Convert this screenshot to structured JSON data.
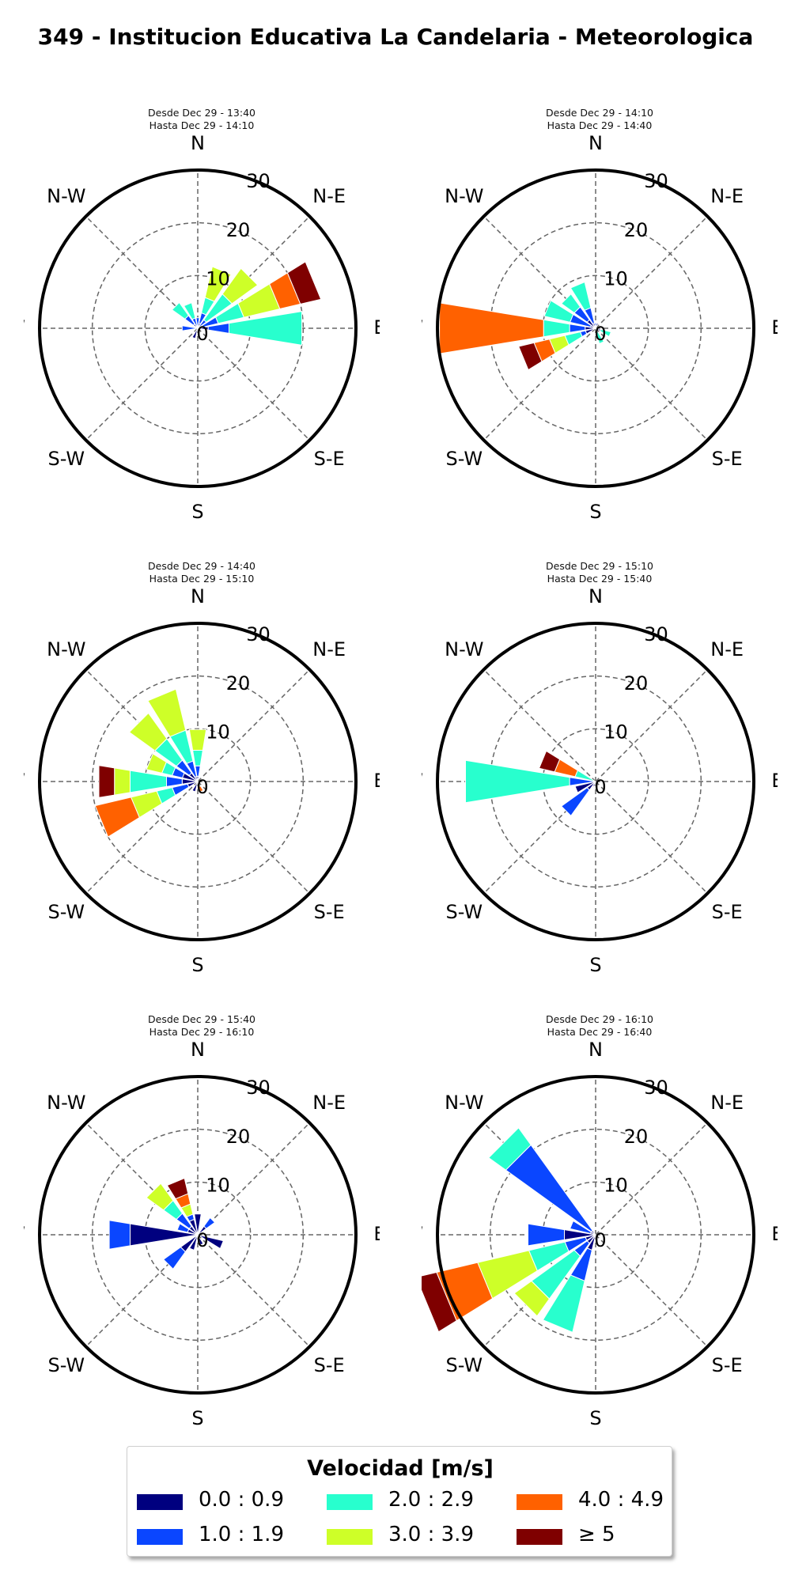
{
  "chart_data": {
    "type": "windrose",
    "title": "349 - Institucion Educativa La Candelaria - Meteorologica",
    "direction_labels": [
      "N",
      "N-E",
      "E",
      "S-E",
      "S",
      "S-W",
      "W",
      "N-W"
    ],
    "radial_ticks": [
      "0",
      "10",
      "20",
      "30"
    ],
    "rlim": [
      0,
      30
    ],
    "units": "percent frequency",
    "legend": {
      "title": "Velocidad [m/s]",
      "bins": [
        {
          "label": "0.0 : 0.9",
          "color": "#00007f"
        },
        {
          "label": "1.0 : 1.9",
          "color": "#0a46ff"
        },
        {
          "label": "2.0 : 2.9",
          "color": "#28ffce"
        },
        {
          "label": "3.0 : 3.9",
          "color": "#ceff28"
        },
        {
          "label": "4.0 : 4.9",
          "color": "#ff6100"
        },
        {
          "label": "≥  5",
          "color": "#7f0000"
        }
      ]
    },
    "panels": [
      {
        "desde": "Desde Dec 29 - 13:40",
        "hasta": "Hasta Dec 29 - 14:10",
        "sectors": [
          {
            "dir": 0,
            "segments": [
              0,
              2,
              0,
              0,
              0,
              0
            ]
          },
          {
            "dir": 22.5,
            "segments": [
              1,
              2,
              3,
              6,
              0,
              0
            ]
          },
          {
            "dir": 45,
            "segments": [
              0,
              2,
              6,
              6,
              0,
              0
            ]
          },
          {
            "dir": 67.5,
            "segments": [
              1,
              3,
              5,
              7,
              4,
              4
            ]
          },
          {
            "dir": 90,
            "segments": [
              2,
              4,
              14,
              0,
              0,
              0
            ]
          },
          {
            "dir": 180,
            "segments": [
              0,
              0,
              0,
              0,
              0,
              0
            ]
          },
          {
            "dir": 202.5,
            "segments": [
              2,
              0,
              0,
              0,
              0,
              0
            ]
          },
          {
            "dir": 270,
            "segments": [
              0,
              3,
              0,
              0,
              0,
              0
            ]
          },
          {
            "dir": 315,
            "segments": [
              1,
              2,
              3,
              0,
              0,
              0
            ]
          },
          {
            "dir": 337.5,
            "segments": [
              0,
              2,
              3,
              0,
              0,
              0
            ]
          }
        ]
      },
      {
        "desde": "Desde Dec 29 - 14:10",
        "hasta": "Hasta Dec 29 - 14:40",
        "sectors": [
          {
            "dir": 0,
            "segments": [
              0,
              1,
              0,
              0,
              0,
              0
            ]
          },
          {
            "dir": 22.5,
            "segments": [
              1,
              0,
              0,
              0,
              0,
              0
            ]
          },
          {
            "dir": 112.5,
            "segments": [
              1,
              0,
              2,
              0,
              0,
              0
            ]
          },
          {
            "dir": 157.5,
            "segments": [
              0,
              0,
              3,
              0,
              0,
              0
            ]
          },
          {
            "dir": 247.5,
            "segments": [
              2,
              1,
              3,
              3,
              3,
              3
            ]
          },
          {
            "dir": 270,
            "segments": [
              2,
              3,
              5,
              0,
              20,
              0
            ]
          },
          {
            "dir": 292.5,
            "segments": [
              1,
              4,
              5,
              0,
              0,
              0
            ]
          },
          {
            "dir": 315,
            "segments": [
              2,
              3,
              3,
              0,
              0,
              0
            ]
          },
          {
            "dir": 337.5,
            "segments": [
              1,
              3,
              5,
              0,
              0,
              0
            ]
          }
        ]
      },
      {
        "desde": "Desde Dec 29 - 14:40",
        "hasta": "Hasta Dec 29 - 15:10",
        "sectors": [
          {
            "dir": 0,
            "segments": [
              1,
              2,
              3,
              4,
              0,
              0
            ]
          },
          {
            "dir": 157.5,
            "segments": [
              0,
              0,
              0,
              1,
              1,
              0
            ]
          },
          {
            "dir": 202.5,
            "segments": [
              2,
              0,
              0,
              0,
              0,
              0
            ]
          },
          {
            "dir": 247.5,
            "segments": [
              2,
              3,
              3,
              5,
              7,
              0
            ]
          },
          {
            "dir": 270,
            "segments": [
              3,
              3,
              7,
              3,
              0,
              3
            ]
          },
          {
            "dir": 292.5,
            "segments": [
              3,
              2,
              2,
              3,
              0,
              0
            ]
          },
          {
            "dir": 315,
            "segments": [
              2,
              3,
              5,
              6,
              0,
              0
            ]
          },
          {
            "dir": 337.5,
            "segments": [
              1,
              3,
              6,
              8,
              0,
              0
            ]
          }
        ]
      },
      {
        "desde": "Desde Dec 29 - 15:10",
        "hasta": "Hasta Dec 29 - 15:40",
        "sectors": [
          {
            "dir": 202.5,
            "segments": [
              1,
              0,
              0,
              0,
              0,
              0
            ]
          },
          {
            "dir": 225,
            "segments": [
              2,
              6,
              0,
              0,
              0,
              0
            ]
          },
          {
            "dir": 210,
            "segments": [
              0,
              0,
              0,
              0,
              0,
              0
            ]
          },
          {
            "dir": 247.5,
            "segments": [
              4,
              0,
              0,
              0,
              0,
              0
            ]
          },
          {
            "dir": 270,
            "segments": [
              0,
              5,
              20,
              0,
              0,
              0
            ]
          },
          {
            "dir": 292.5,
            "segments": [
              0,
              0,
              4,
              0,
              4,
              3
            ]
          }
        ]
      },
      {
        "desde": "Desde Dec 29 - 15:40",
        "hasta": "Hasta Dec 29 - 16:10",
        "sectors": [
          {
            "dir": 0,
            "segments": [
              4,
              0,
              0,
              0,
              0,
              0
            ]
          },
          {
            "dir": 45,
            "segments": [
              2,
              2,
              0,
              0,
              0,
              0
            ]
          },
          {
            "dir": 112.5,
            "segments": [
              5,
              0,
              0,
              0,
              0,
              0
            ]
          },
          {
            "dir": 157.5,
            "segments": [
              2,
              0,
              0,
              0,
              0,
              0
            ]
          },
          {
            "dir": 202.5,
            "segments": [
              3,
              0,
              0,
              0,
              0,
              0
            ]
          },
          {
            "dir": 225,
            "segments": [
              4,
              4,
              0,
              0,
              0,
              0
            ]
          },
          {
            "dir": 270,
            "segments": [
              13,
              4,
              0,
              0,
              0,
              0
            ]
          },
          {
            "dir": 292.5,
            "segments": [
              2,
              2,
              0,
              0,
              0,
              0
            ]
          },
          {
            "dir": 315,
            "segments": [
              2,
              3,
              3,
              4,
              0,
              0
            ]
          },
          {
            "dir": 337.5,
            "segments": [
              3,
              1,
              0,
              2,
              2,
              3
            ]
          }
        ]
      },
      {
        "desde": "Desde Dec 29 - 16:10",
        "hasta": "Hasta Dec 29 - 16:40",
        "sectors": [
          {
            "dir": 202.5,
            "segments": [
              3,
              6,
              10,
              0,
              0,
              0
            ]
          },
          {
            "dir": 225,
            "segments": [
              2,
              3,
              10,
              4,
              0,
              0
            ]
          },
          {
            "dir": 247.5,
            "segments": [
              2,
              4,
              7,
              10,
              8,
              4
            ]
          },
          {
            "dir": 270,
            "segments": [
              6,
              7,
              0,
              0,
              0,
              0
            ]
          },
          {
            "dir": 292.5,
            "segments": [
              1,
              4,
              0,
              0,
              0,
              0
            ]
          },
          {
            "dir": 315,
            "segments": [
              1,
              20,
              4,
              0,
              0,
              0
            ]
          }
        ]
      }
    ]
  }
}
